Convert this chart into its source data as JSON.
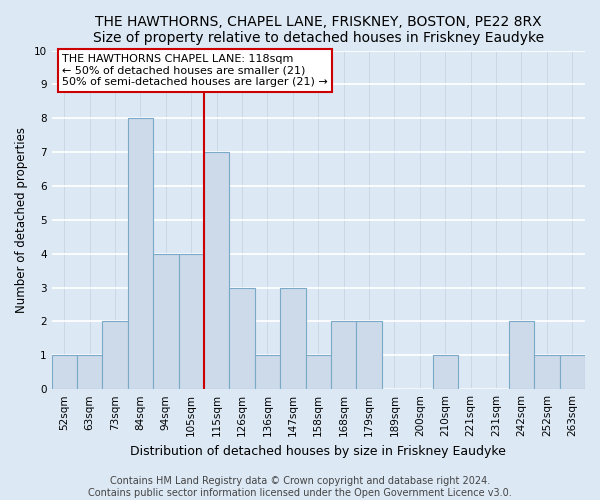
{
  "title": "THE HAWTHORNS, CHAPEL LANE, FRISKNEY, BOSTON, PE22 8RX",
  "subtitle": "Size of property relative to detached houses in Friskney Eaudyke",
  "xlabel": "Distribution of detached houses by size in Friskney Eaudyke",
  "ylabel": "Number of detached properties",
  "bar_labels": [
    "52sqm",
    "63sqm",
    "73sqm",
    "84sqm",
    "94sqm",
    "105sqm",
    "115sqm",
    "126sqm",
    "136sqm",
    "147sqm",
    "158sqm",
    "168sqm",
    "179sqm",
    "189sqm",
    "200sqm",
    "210sqm",
    "221sqm",
    "231sqm",
    "242sqm",
    "252sqm",
    "263sqm"
  ],
  "bar_values": [
    1,
    1,
    2,
    8,
    4,
    4,
    7,
    3,
    1,
    3,
    1,
    2,
    2,
    0,
    0,
    1,
    0,
    0,
    2,
    1,
    1
  ],
  "bar_color": "#cddaea",
  "bar_edge_color": "#7aaac8",
  "vline_x": 5.5,
  "vline_color": "#cc0000",
  "ylim": [
    0,
    10
  ],
  "yticks": [
    0,
    1,
    2,
    3,
    4,
    5,
    6,
    7,
    8,
    9,
    10
  ],
  "annotation_text": "THE HAWTHORNS CHAPEL LANE: 118sqm\n← 50% of detached houses are smaller (21)\n50% of semi-detached houses are larger (21) →",
  "annotation_box_color": "#ffffff",
  "annotation_border_color": "#cc0000",
  "footer1": "Contains HM Land Registry data © Crown copyright and database right 2024.",
  "footer2": "Contains public sector information licensed under the Open Government Licence v3.0.",
  "bg_color": "#dce8f4",
  "grid_color": "#c5d5e5",
  "title_fontsize": 10,
  "ylabel_fontsize": 8.5,
  "xlabel_fontsize": 9,
  "tick_fontsize": 7.5,
  "footer_fontsize": 7
}
